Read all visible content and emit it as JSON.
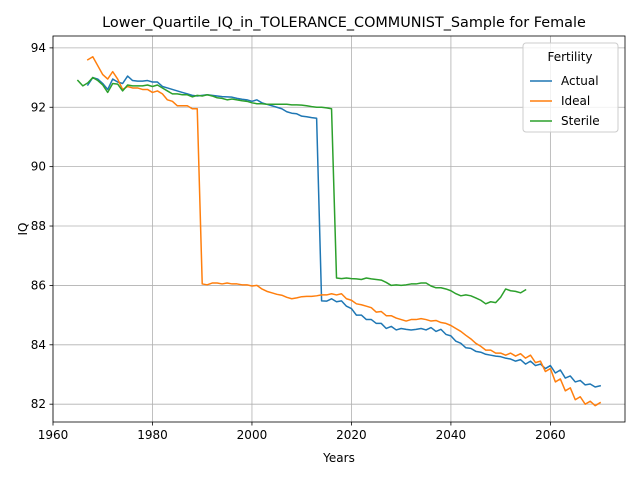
{
  "chart_data": {
    "type": "line",
    "title": "Lower_Quartile_IQ_in_TOLERANCE_COMMUNIST_Sample for Female",
    "xlabel": "Years",
    "ylabel": "IQ",
    "xlim": [
      1960,
      2075
    ],
    "ylim": [
      81.4,
      94.4
    ],
    "xticks": [
      1960,
      1980,
      2000,
      2020,
      2040,
      2060
    ],
    "yticks": [
      82,
      84,
      86,
      88,
      90,
      92,
      94
    ],
    "grid": true,
    "legend": {
      "title": "Fertility",
      "placement": "upper right"
    },
    "colors": {
      "Actual": "#1f77b4",
      "Ideal": "#ff7f0e",
      "Sterile": "#2ca02c"
    },
    "series": [
      {
        "name": "Actual",
        "points": [
          [
            1967,
            92.75
          ],
          [
            1968,
            93.0
          ],
          [
            1969,
            92.95
          ],
          [
            1970,
            92.8
          ],
          [
            1971,
            92.6
          ],
          [
            1972,
            92.95
          ],
          [
            1973,
            92.85
          ],
          [
            1974,
            92.8
          ],
          [
            1975,
            93.05
          ],
          [
            1976,
            92.9
          ],
          [
            1977,
            92.88
          ],
          [
            1978,
            92.88
          ],
          [
            1979,
            92.9
          ],
          [
            1980,
            92.85
          ],
          [
            1981,
            92.85
          ],
          [
            1982,
            92.7
          ],
          [
            1983,
            92.65
          ],
          [
            1984,
            92.6
          ],
          [
            1985,
            92.55
          ],
          [
            1986,
            92.5
          ],
          [
            1987,
            92.45
          ],
          [
            1988,
            92.4
          ],
          [
            1989,
            92.38
          ],
          [
            1990,
            92.4
          ],
          [
            1991,
            92.42
          ],
          [
            1992,
            92.4
          ],
          [
            1993,
            92.38
          ],
          [
            1994,
            92.36
          ],
          [
            1995,
            92.35
          ],
          [
            1996,
            92.34
          ],
          [
            1997,
            92.3
          ],
          [
            1998,
            92.27
          ],
          [
            1999,
            92.25
          ],
          [
            2000,
            92.2
          ],
          [
            2001,
            92.25
          ],
          [
            2002,
            92.15
          ],
          [
            2003,
            92.1
          ],
          [
            2004,
            92.05
          ],
          [
            2005,
            92.0
          ],
          [
            2006,
            91.95
          ],
          [
            2007,
            91.85
          ],
          [
            2008,
            91.8
          ],
          [
            2009,
            91.78
          ],
          [
            2010,
            91.7
          ],
          [
            2011,
            91.68
          ],
          [
            2012,
            91.65
          ],
          [
            2013,
            91.63
          ],
          [
            2014,
            85.48
          ],
          [
            2015,
            85.47
          ],
          [
            2016,
            85.55
          ],
          [
            2017,
            85.45
          ],
          [
            2018,
            85.48
          ],
          [
            2019,
            85.3
          ],
          [
            2020,
            85.22
          ],
          [
            2021,
            85.0
          ],
          [
            2022,
            85.0
          ],
          [
            2023,
            84.85
          ],
          [
            2024,
            84.85
          ],
          [
            2025,
            84.72
          ],
          [
            2026,
            84.72
          ],
          [
            2027,
            84.55
          ],
          [
            2028,
            84.62
          ],
          [
            2029,
            84.5
          ],
          [
            2030,
            84.55
          ],
          [
            2031,
            84.52
          ],
          [
            2032,
            84.5
          ],
          [
            2033,
            84.52
          ],
          [
            2034,
            84.55
          ],
          [
            2035,
            84.5
          ],
          [
            2036,
            84.58
          ],
          [
            2037,
            84.45
          ],
          [
            2038,
            84.52
          ],
          [
            2039,
            84.35
          ],
          [
            2040,
            84.3
          ],
          [
            2041,
            84.12
          ],
          [
            2042,
            84.05
          ],
          [
            2043,
            83.9
          ],
          [
            2044,
            83.88
          ],
          [
            2045,
            83.78
          ],
          [
            2046,
            83.75
          ],
          [
            2047,
            83.68
          ],
          [
            2048,
            83.65
          ],
          [
            2049,
            83.62
          ],
          [
            2050,
            83.6
          ],
          [
            2051,
            83.55
          ],
          [
            2052,
            83.52
          ],
          [
            2053,
            83.45
          ],
          [
            2054,
            83.5
          ],
          [
            2055,
            83.35
          ],
          [
            2056,
            83.45
          ],
          [
            2057,
            83.3
          ],
          [
            2058,
            83.35
          ],
          [
            2059,
            83.2
          ],
          [
            2060,
            83.3
          ],
          [
            2061,
            83.05
          ],
          [
            2062,
            83.15
          ],
          [
            2063,
            82.88
          ],
          [
            2064,
            82.95
          ],
          [
            2065,
            82.75
          ],
          [
            2066,
            82.8
          ],
          [
            2067,
            82.65
          ],
          [
            2068,
            82.68
          ],
          [
            2069,
            82.58
          ],
          [
            2070,
            82.62
          ]
        ]
      },
      {
        "name": "Ideal",
        "points": [
          [
            1967,
            93.6
          ],
          [
            1968,
            93.7
          ],
          [
            1969,
            93.4
          ],
          [
            1970,
            93.1
          ],
          [
            1971,
            92.95
          ],
          [
            1972,
            93.2
          ],
          [
            1973,
            92.95
          ],
          [
            1974,
            92.6
          ],
          [
            1975,
            92.7
          ],
          [
            1976,
            92.65
          ],
          [
            1977,
            92.65
          ],
          [
            1978,
            92.6
          ],
          [
            1979,
            92.6
          ],
          [
            1980,
            92.5
          ],
          [
            1981,
            92.55
          ],
          [
            1982,
            92.45
          ],
          [
            1983,
            92.25
          ],
          [
            1984,
            92.2
          ],
          [
            1985,
            92.05
          ],
          [
            1986,
            92.05
          ],
          [
            1987,
            92.05
          ],
          [
            1988,
            91.95
          ],
          [
            1989,
            91.95
          ],
          [
            1990,
            86.05
          ],
          [
            1991,
            86.02
          ],
          [
            1992,
            86.08
          ],
          [
            1993,
            86.08
          ],
          [
            1994,
            86.05
          ],
          [
            1995,
            86.08
          ],
          [
            1996,
            86.05
          ],
          [
            1997,
            86.05
          ],
          [
            1998,
            86.02
          ],
          [
            1999,
            86.02
          ],
          [
            2000,
            85.98
          ],
          [
            2001,
            86.0
          ],
          [
            2002,
            85.88
          ],
          [
            2003,
            85.8
          ],
          [
            2004,
            85.75
          ],
          [
            2005,
            85.7
          ],
          [
            2006,
            85.67
          ],
          [
            2007,
            85.6
          ],
          [
            2008,
            85.55
          ],
          [
            2009,
            85.58
          ],
          [
            2010,
            85.62
          ],
          [
            2011,
            85.63
          ],
          [
            2012,
            85.63
          ],
          [
            2013,
            85.65
          ],
          [
            2014,
            85.68
          ],
          [
            2015,
            85.68
          ],
          [
            2016,
            85.72
          ],
          [
            2017,
            85.68
          ],
          [
            2018,
            85.72
          ],
          [
            2019,
            85.55
          ],
          [
            2020,
            85.5
          ],
          [
            2021,
            85.38
          ],
          [
            2022,
            85.35
          ],
          [
            2023,
            85.3
          ],
          [
            2024,
            85.25
          ],
          [
            2025,
            85.1
          ],
          [
            2026,
            85.12
          ],
          [
            2027,
            84.98
          ],
          [
            2028,
            84.98
          ],
          [
            2029,
            84.9
          ],
          [
            2030,
            84.85
          ],
          [
            2031,
            84.8
          ],
          [
            2032,
            84.85
          ],
          [
            2033,
            84.85
          ],
          [
            2034,
            84.88
          ],
          [
            2035,
            84.85
          ],
          [
            2036,
            84.8
          ],
          [
            2037,
            84.82
          ],
          [
            2038,
            84.75
          ],
          [
            2039,
            84.72
          ],
          [
            2040,
            84.65
          ],
          [
            2041,
            84.55
          ],
          [
            2042,
            84.45
          ],
          [
            2043,
            84.32
          ],
          [
            2044,
            84.2
          ],
          [
            2045,
            84.05
          ],
          [
            2046,
            83.95
          ],
          [
            2047,
            83.82
          ],
          [
            2048,
            83.82
          ],
          [
            2049,
            83.72
          ],
          [
            2050,
            83.72
          ],
          [
            2051,
            83.65
          ],
          [
            2052,
            83.72
          ],
          [
            2053,
            83.62
          ],
          [
            2054,
            83.7
          ],
          [
            2055,
            83.55
          ],
          [
            2056,
            83.65
          ],
          [
            2057,
            83.4
          ],
          [
            2058,
            83.45
          ],
          [
            2059,
            83.1
          ],
          [
            2060,
            83.2
          ],
          [
            2061,
            82.75
          ],
          [
            2062,
            82.85
          ],
          [
            2063,
            82.45
          ],
          [
            2064,
            82.55
          ],
          [
            2065,
            82.15
          ],
          [
            2066,
            82.25
          ],
          [
            2067,
            82.0
          ],
          [
            2068,
            82.1
          ],
          [
            2069,
            81.95
          ],
          [
            2070,
            82.05
          ]
        ]
      },
      {
        "name": "Sterile",
        "points": [
          [
            1965,
            92.9
          ],
          [
            1966,
            92.72
          ],
          [
            1967,
            92.82
          ],
          [
            1968,
            93.0
          ],
          [
            1969,
            92.9
          ],
          [
            1970,
            92.75
          ],
          [
            1971,
            92.5
          ],
          [
            1972,
            92.8
          ],
          [
            1973,
            92.78
          ],
          [
            1974,
            92.55
          ],
          [
            1975,
            92.75
          ],
          [
            1976,
            92.72
          ],
          [
            1977,
            92.72
          ],
          [
            1978,
            92.72
          ],
          [
            1979,
            92.75
          ],
          [
            1980,
            92.7
          ],
          [
            1981,
            92.75
          ],
          [
            1982,
            92.65
          ],
          [
            1983,
            92.55
          ],
          [
            1984,
            92.45
          ],
          [
            1985,
            92.45
          ],
          [
            1986,
            92.42
          ],
          [
            1987,
            92.42
          ],
          [
            1988,
            92.35
          ],
          [
            1989,
            92.4
          ],
          [
            1990,
            92.38
          ],
          [
            1991,
            92.42
          ],
          [
            1992,
            92.38
          ],
          [
            1993,
            92.32
          ],
          [
            1994,
            92.3
          ],
          [
            1995,
            92.25
          ],
          [
            1996,
            92.28
          ],
          [
            1997,
            92.25
          ],
          [
            1998,
            92.22
          ],
          [
            1999,
            92.2
          ],
          [
            2000,
            92.15
          ],
          [
            2001,
            92.12
          ],
          [
            2002,
            92.12
          ],
          [
            2003,
            92.1
          ],
          [
            2004,
            92.1
          ],
          [
            2005,
            92.1
          ],
          [
            2006,
            92.1
          ],
          [
            2007,
            92.1
          ],
          [
            2008,
            92.08
          ],
          [
            2009,
            92.08
          ],
          [
            2010,
            92.07
          ],
          [
            2011,
            92.05
          ],
          [
            2012,
            92.02
          ],
          [
            2013,
            92.0
          ],
          [
            2014,
            92.0
          ],
          [
            2015,
            91.98
          ],
          [
            2016,
            91.95
          ],
          [
            2017,
            86.25
          ],
          [
            2018,
            86.23
          ],
          [
            2019,
            86.25
          ],
          [
            2020,
            86.23
          ],
          [
            2021,
            86.22
          ],
          [
            2022,
            86.2
          ],
          [
            2023,
            86.25
          ],
          [
            2024,
            86.22
          ],
          [
            2025,
            86.2
          ],
          [
            2026,
            86.18
          ],
          [
            2027,
            86.1
          ],
          [
            2028,
            86.0
          ],
          [
            2029,
            86.02
          ],
          [
            2030,
            86.0
          ],
          [
            2031,
            86.02
          ],
          [
            2032,
            86.05
          ],
          [
            2033,
            86.05
          ],
          [
            2034,
            86.08
          ],
          [
            2035,
            86.08
          ],
          [
            2036,
            85.98
          ],
          [
            2037,
            85.92
          ],
          [
            2038,
            85.92
          ],
          [
            2039,
            85.88
          ],
          [
            2040,
            85.82
          ],
          [
            2041,
            85.72
          ],
          [
            2042,
            85.65
          ],
          [
            2043,
            85.68
          ],
          [
            2044,
            85.65
          ],
          [
            2045,
            85.58
          ],
          [
            2046,
            85.5
          ],
          [
            2047,
            85.38
          ],
          [
            2048,
            85.45
          ],
          [
            2049,
            85.42
          ],
          [
            2050,
            85.6
          ],
          [
            2051,
            85.88
          ],
          [
            2052,
            85.82
          ],
          [
            2053,
            85.8
          ],
          [
            2054,
            85.75
          ],
          [
            2055,
            85.85
          ]
        ]
      }
    ]
  }
}
